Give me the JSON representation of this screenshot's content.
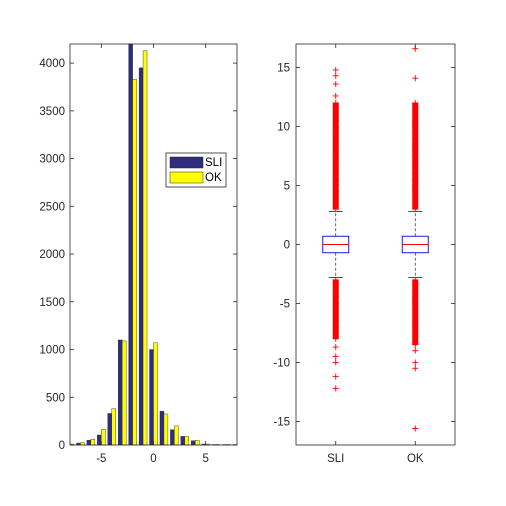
{
  "chart_data": [
    {
      "type": "bar",
      "title": "",
      "xlabel": "",
      "ylabel": "",
      "xlim": [
        -8,
        8
      ],
      "ylim": [
        0,
        4200
      ],
      "x_ticks": [
        -5,
        0,
        5
      ],
      "y_ticks": [
        0,
        500,
        1000,
        1500,
        2000,
        2500,
        3000,
        3500,
        4000
      ],
      "categories": [
        -8,
        -7,
        -6,
        -5,
        -4,
        -3,
        -2,
        -1,
        0,
        1,
        2,
        3,
        4,
        5,
        6,
        7,
        8
      ],
      "series": [
        {
          "name": "SLI",
          "color": "#2e2e7e",
          "values": [
            10,
            20,
            50,
            105,
            330,
            1100,
            4240,
            3950,
            1000,
            355,
            160,
            90,
            45,
            10,
            5,
            5,
            5
          ]
        },
        {
          "name": "OK",
          "color": "#ffff00",
          "values": [
            10,
            25,
            60,
            165,
            380,
            1090,
            3830,
            4130,
            1070,
            325,
            200,
            90,
            50,
            10,
            5,
            5,
            5
          ]
        }
      ],
      "legend": "right-middle",
      "grid": false
    },
    {
      "type": "box",
      "title": "",
      "xlabel": "",
      "ylabel": "",
      "categories": [
        "SLI",
        "OK"
      ],
      "ylim": [
        -17,
        17
      ],
      "y_ticks": [
        -15,
        -10,
        -5,
        0,
        5,
        10,
        15
      ],
      "box_color": "#0000ff",
      "median_color": "#ff0000",
      "outlier_color": "#ff0000",
      "boxes": [
        {
          "name": "SLI",
          "q1": -0.7,
          "median": 0,
          "q3": 0.7,
          "whisker_low": -2.8,
          "whisker_high": 2.8,
          "outliers_high": [
            3.0,
            3.5,
            4.0,
            4.5,
            5.0,
            5.5,
            6.0,
            6.5,
            7.0,
            7.5,
            8.0,
            8.5,
            9.0,
            9.5,
            10.0,
            10.5,
            11.0,
            11.5,
            12.0,
            12.6,
            13.6,
            14.3,
            14.8
          ],
          "outliers_low": [
            -3.0,
            -3.5,
            -4.0,
            -4.5,
            -5.0,
            -5.5,
            -6.0,
            -6.5,
            -7.0,
            -7.5,
            -8.0,
            -8.7,
            -9.5,
            -10.0,
            -11.2,
            -12.2
          ]
        },
        {
          "name": "OK",
          "q1": -0.7,
          "median": 0,
          "q3": 0.7,
          "whisker_low": -2.8,
          "whisker_high": 2.8,
          "outliers_high": [
            3.0,
            3.5,
            4.0,
            4.5,
            5.0,
            5.5,
            6.0,
            6.5,
            7.0,
            7.5,
            8.0,
            8.5,
            9.0,
            9.5,
            10.0,
            10.5,
            11.0,
            11.5,
            12.0,
            14.1,
            16.6
          ],
          "outliers_low": [
            -3.0,
            -3.5,
            -4.0,
            -4.5,
            -5.0,
            -5.5,
            -6.0,
            -6.5,
            -7.0,
            -7.5,
            -8.0,
            -8.5,
            -9.0,
            -10.0,
            -10.5,
            -15.6
          ]
        }
      ],
      "grid": false
    }
  ]
}
